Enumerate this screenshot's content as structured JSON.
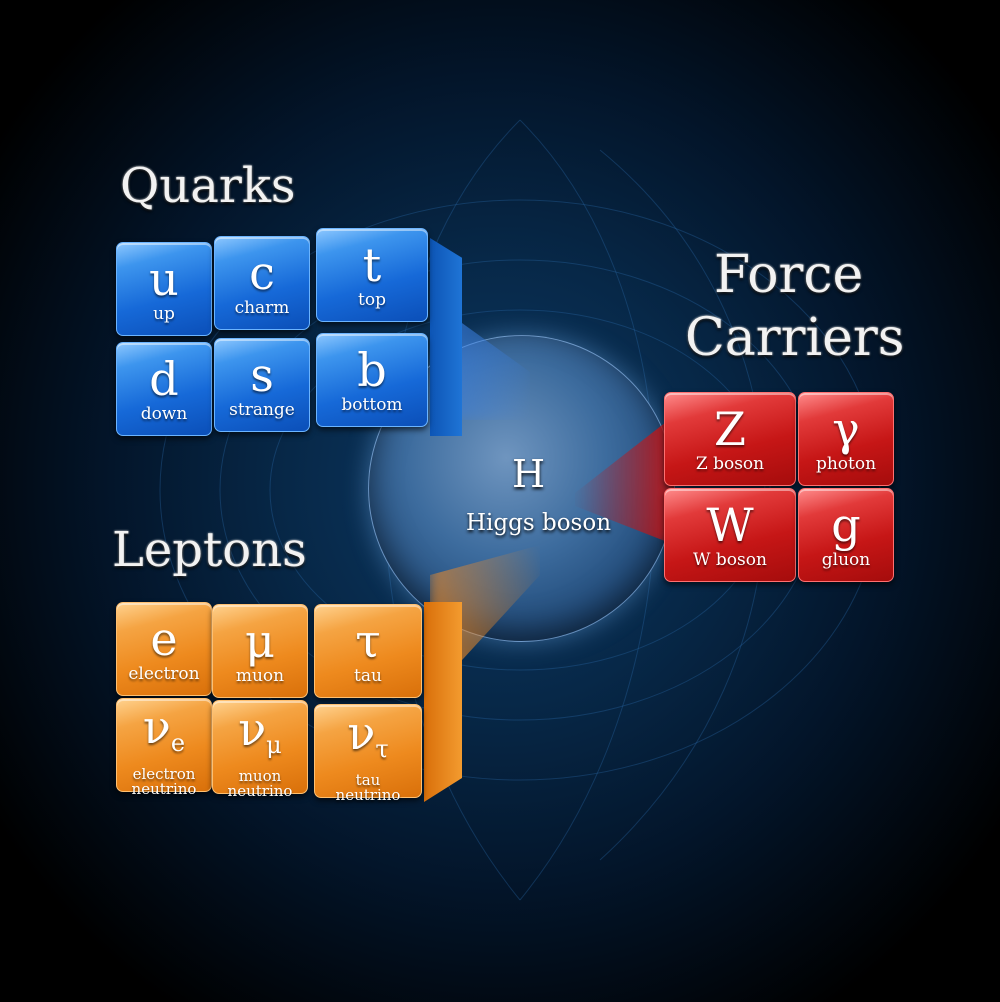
{
  "titles": {
    "quarks": "Quarks",
    "leptons": "Leptons",
    "force_line1": "Force",
    "force_line2": "Carriers"
  },
  "higgs": {
    "symbol": "H",
    "name": "Higgs boson"
  },
  "quarks": [
    {
      "symbol": "u",
      "name": "up"
    },
    {
      "symbol": "c",
      "name": "charm"
    },
    {
      "symbol": "t",
      "name": "top"
    },
    {
      "symbol": "d",
      "name": "down"
    },
    {
      "symbol": "s",
      "name": "strange"
    },
    {
      "symbol": "b",
      "name": "bottom"
    }
  ],
  "leptons": [
    {
      "symbol": "e",
      "name": "electron"
    },
    {
      "symbol": "μ",
      "name": "muon"
    },
    {
      "symbol": "τ",
      "name": "tau"
    },
    {
      "symbol": "ν",
      "sub": "e",
      "name1": "electron",
      "name2": "neutrino"
    },
    {
      "symbol": "ν",
      "sub": "μ",
      "name1": "muon",
      "name2": "neutrino"
    },
    {
      "symbol": "ν",
      "sub": "τ",
      "name1": "tau",
      "name2": "neutrino"
    }
  ],
  "force_carriers": [
    {
      "symbol": "Z",
      "name": "Z  boson"
    },
    {
      "symbol": "γ",
      "name": "photon"
    },
    {
      "symbol": "W",
      "name": "W  boson"
    },
    {
      "symbol": "g",
      "name": "gluon"
    }
  ],
  "colors": {
    "quark": "#1669d8",
    "lepton": "#ee8a1e",
    "force": "#c61616",
    "higgs": "#3d6c9e"
  }
}
